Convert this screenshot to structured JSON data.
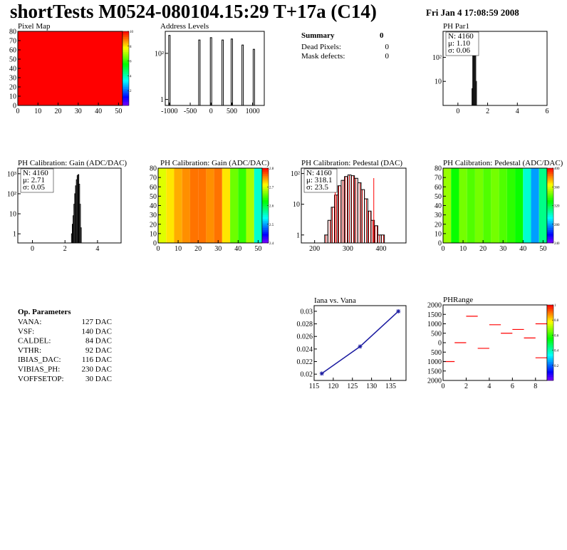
{
  "header": {
    "title": "shortTests M0524-080104.15:29 T+17a (C14)",
    "date": "Fri Jan  4 17:08:59 2008"
  },
  "summary": {
    "title": "Summary",
    "total": "0",
    "rows": [
      [
        "Dead Pixels:",
        "0"
      ],
      [
        "Mask defects:",
        "0"
      ]
    ]
  },
  "op_parameters": {
    "title": "Op. Parameters",
    "rows": [
      [
        "VANA:",
        "127 DAC"
      ],
      [
        "VSF:",
        "140 DAC"
      ],
      [
        "CALDEL:",
        "84 DAC"
      ],
      [
        "VTHR:",
        "92 DAC"
      ],
      [
        "IBIAS_DAC:",
        "116 DAC"
      ],
      [
        "VIBIAS_PH:",
        "230 DAC"
      ],
      [
        "VOFFSETOP:",
        "30 DAC"
      ]
    ]
  },
  "chart_data": [
    {
      "type": "heatmap",
      "title": "Pixel Map",
      "xbins": [
        0,
        52
      ],
      "values": [
        10
      ],
      "xlim": [
        0,
        52
      ],
      "ylim": [
        0,
        80
      ],
      "xticks": [
        0,
        10,
        20,
        30,
        40,
        50
      ],
      "yticks": [
        0,
        10,
        20,
        30,
        40,
        50,
        60,
        70,
        80
      ],
      "zlim": [
        0,
        10
      ],
      "zticks": [
        2,
        4,
        6,
        8,
        10
      ]
    },
    {
      "type": "bar",
      "title": "Address Levels",
      "x": [
        -1000,
        -280,
        0,
        280,
        500,
        760,
        1030
      ],
      "values": [
        600,
        380,
        480,
        380,
        420,
        230,
        150
      ],
      "logy": true,
      "xlim": [
        -1100,
        1280
      ],
      "ylim": [
        0.55,
        900
      ],
      "xticks": [
        -1000,
        -500,
        0,
        500,
        1000
      ],
      "yticks": [
        1,
        {
          "value": 100,
          "label": "10²"
        }
      ],
      "color": "#000000"
    },
    {
      "type": "histogram",
      "title": "PH Par1",
      "bins": [
        0.95,
        1.0,
        1.05,
        1.1,
        1.15,
        1.2,
        1.25
      ],
      "values": [
        5,
        150,
        700,
        650,
        120,
        10
      ],
      "logy": true,
      "xlim": [
        -1,
        6
      ],
      "ylim": [
        1,
        1200
      ],
      "xticks": [
        0,
        2,
        4,
        6
      ],
      "yticks": [
        10,
        {
          "value": 100,
          "label": "10²"
        }
      ],
      "stats": [
        "N: 4160",
        "μ: 1.10",
        "σ: 0.06"
      ]
    },
    {
      "type": "histogram",
      "title": "PH Calibration: Gain (ADC/DAC)",
      "bins": [
        2.4,
        2.45,
        2.5,
        2.55,
        2.6,
        2.65,
        2.7,
        2.75,
        2.8,
        2.85,
        2.9,
        2.95,
        3.0
      ],
      "values": [
        1,
        3,
        8,
        30,
        100,
        250,
        500,
        800,
        900,
        300,
        30,
        2
      ],
      "logy": true,
      "xlim": [
        -0.9,
        5.45
      ],
      "ylim": [
        0.35,
        1900
      ],
      "xticks": [
        0,
        2,
        4
      ],
      "yticks": [
        1,
        10,
        {
          "value": 100,
          "label": "10²"
        },
        {
          "value": 1000,
          "label": "10³"
        }
      ],
      "stats": [
        "N: 4160",
        "μ: 2.71",
        "σ: 0.05"
      ]
    },
    {
      "type": "heatmap",
      "title": "PH Calibration: Gain (ADC/DAC)",
      "xbins": [
        0,
        4,
        8,
        12,
        16,
        20,
        24,
        28,
        32,
        36,
        40,
        44,
        48,
        52
      ],
      "values": [
        2.7,
        2.72,
        2.74,
        2.75,
        2.76,
        2.76,
        2.75,
        2.76,
        2.72,
        2.66,
        2.64,
        2.68,
        2.55
      ],
      "xlim": [
        0,
        52
      ],
      "ylim": [
        0,
        80
      ],
      "xticks": [
        0,
        10,
        20,
        30,
        40,
        50
      ],
      "yticks": [
        0,
        10,
        20,
        30,
        40,
        50,
        60,
        70,
        80
      ],
      "zlim": [
        2.4,
        2.8
      ],
      "zticks": [
        2.4,
        2.5,
        2.6,
        2.7,
        2.8
      ]
    },
    {
      "type": "histogram",
      "title": "PH Calibration: Pedestal (DAC)",
      "bins": [
        230,
        240,
        250,
        260,
        270,
        280,
        290,
        300,
        310,
        320,
        330,
        340,
        350,
        360,
        370,
        380,
        390,
        400,
        410
      ],
      "values": [
        1,
        3,
        8,
        20,
        40,
        60,
        80,
        90,
        85,
        70,
        50,
        30,
        15,
        6,
        3,
        2,
        1,
        1
      ],
      "logy": true,
      "xlim": [
        160,
        475
      ],
      "ylim": [
        0.55,
        150
      ],
      "xticks": [
        200,
        300,
        400
      ],
      "yticks": [
        1,
        10,
        {
          "value": 100,
          "label": "10²"
        }
      ],
      "fill": "hatch",
      "cut_lines": [
        262,
        378
      ],
      "cut_color": "#ff0000",
      "stats": [
        "N: 4160",
        "μ: 318.1",
        "σ: 23.5"
      ],
      "stats_colors": [
        "#000000",
        "#ff0000",
        "#ff0000"
      ]
    },
    {
      "type": "heatmap",
      "title": "PH Calibration: Pedestal (ADC/DAC)",
      "xbins": [
        0,
        4,
        8,
        12,
        16,
        20,
        24,
        28,
        32,
        36,
        40,
        44,
        48,
        52
      ],
      "values": [
        350,
        330,
        345,
        340,
        345,
        340,
        345,
        340,
        335,
        330,
        300,
        280,
        310
      ],
      "xlim": [
        0,
        52
      ],
      "ylim": [
        0,
        80
      ],
      "xticks": [
        0,
        10,
        20,
        30,
        40,
        50
      ],
      "yticks": [
        0,
        10,
        20,
        30,
        40,
        50,
        60,
        70,
        80
      ],
      "zlim": [
        240,
        400
      ],
      "zticks": [
        240,
        280,
        320,
        360,
        400
      ]
    },
    {
      "type": "scatter",
      "title": "Iana vs. Vana",
      "line": true,
      "series": [
        {
          "name": "Iana",
          "color": "#1a1aa0",
          "x": [
            117,
            127,
            137
          ],
          "values": [
            0.0201,
            0.0244,
            0.03
          ]
        }
      ],
      "xlim": [
        115,
        139
      ],
      "ylim": [
        0.019,
        0.0309
      ],
      "xticks": [
        115,
        120,
        125,
        130,
        135
      ],
      "yticks": [
        0.02,
        0.022,
        0.024,
        0.026,
        0.028,
        0.03
      ]
    },
    {
      "type": "scatter",
      "title": "PHRange",
      "marker": "dash",
      "series": [
        {
          "name": "PHRange",
          "color": "#ff0000",
          "x": [
            0,
            1,
            2,
            3,
            4,
            5,
            6,
            7,
            8,
            8
          ],
          "values": [
            -1000,
            0,
            1400,
            -300,
            950,
            500,
            700,
            250,
            1000,
            -800
          ]
        }
      ],
      "xlim": [
        0,
        9
      ],
      "ylim": [
        -2000,
        2000
      ],
      "xticks": [
        0,
        2,
        4,
        6,
        8
      ],
      "yticks": [
        {
          "value": -2000,
          "label": "2000"
        },
        {
          "value": -1500,
          "label": "1500"
        },
        {
          "value": -1000,
          "label": "1000"
        },
        {
          "value": -500,
          "label": "500"
        },
        0,
        500,
        1000,
        1500,
        2000
      ],
      "zlim": [
        0,
        1
      ],
      "zticks": [
        0.2,
        0.4,
        0.6,
        0.8,
        1
      ]
    }
  ]
}
